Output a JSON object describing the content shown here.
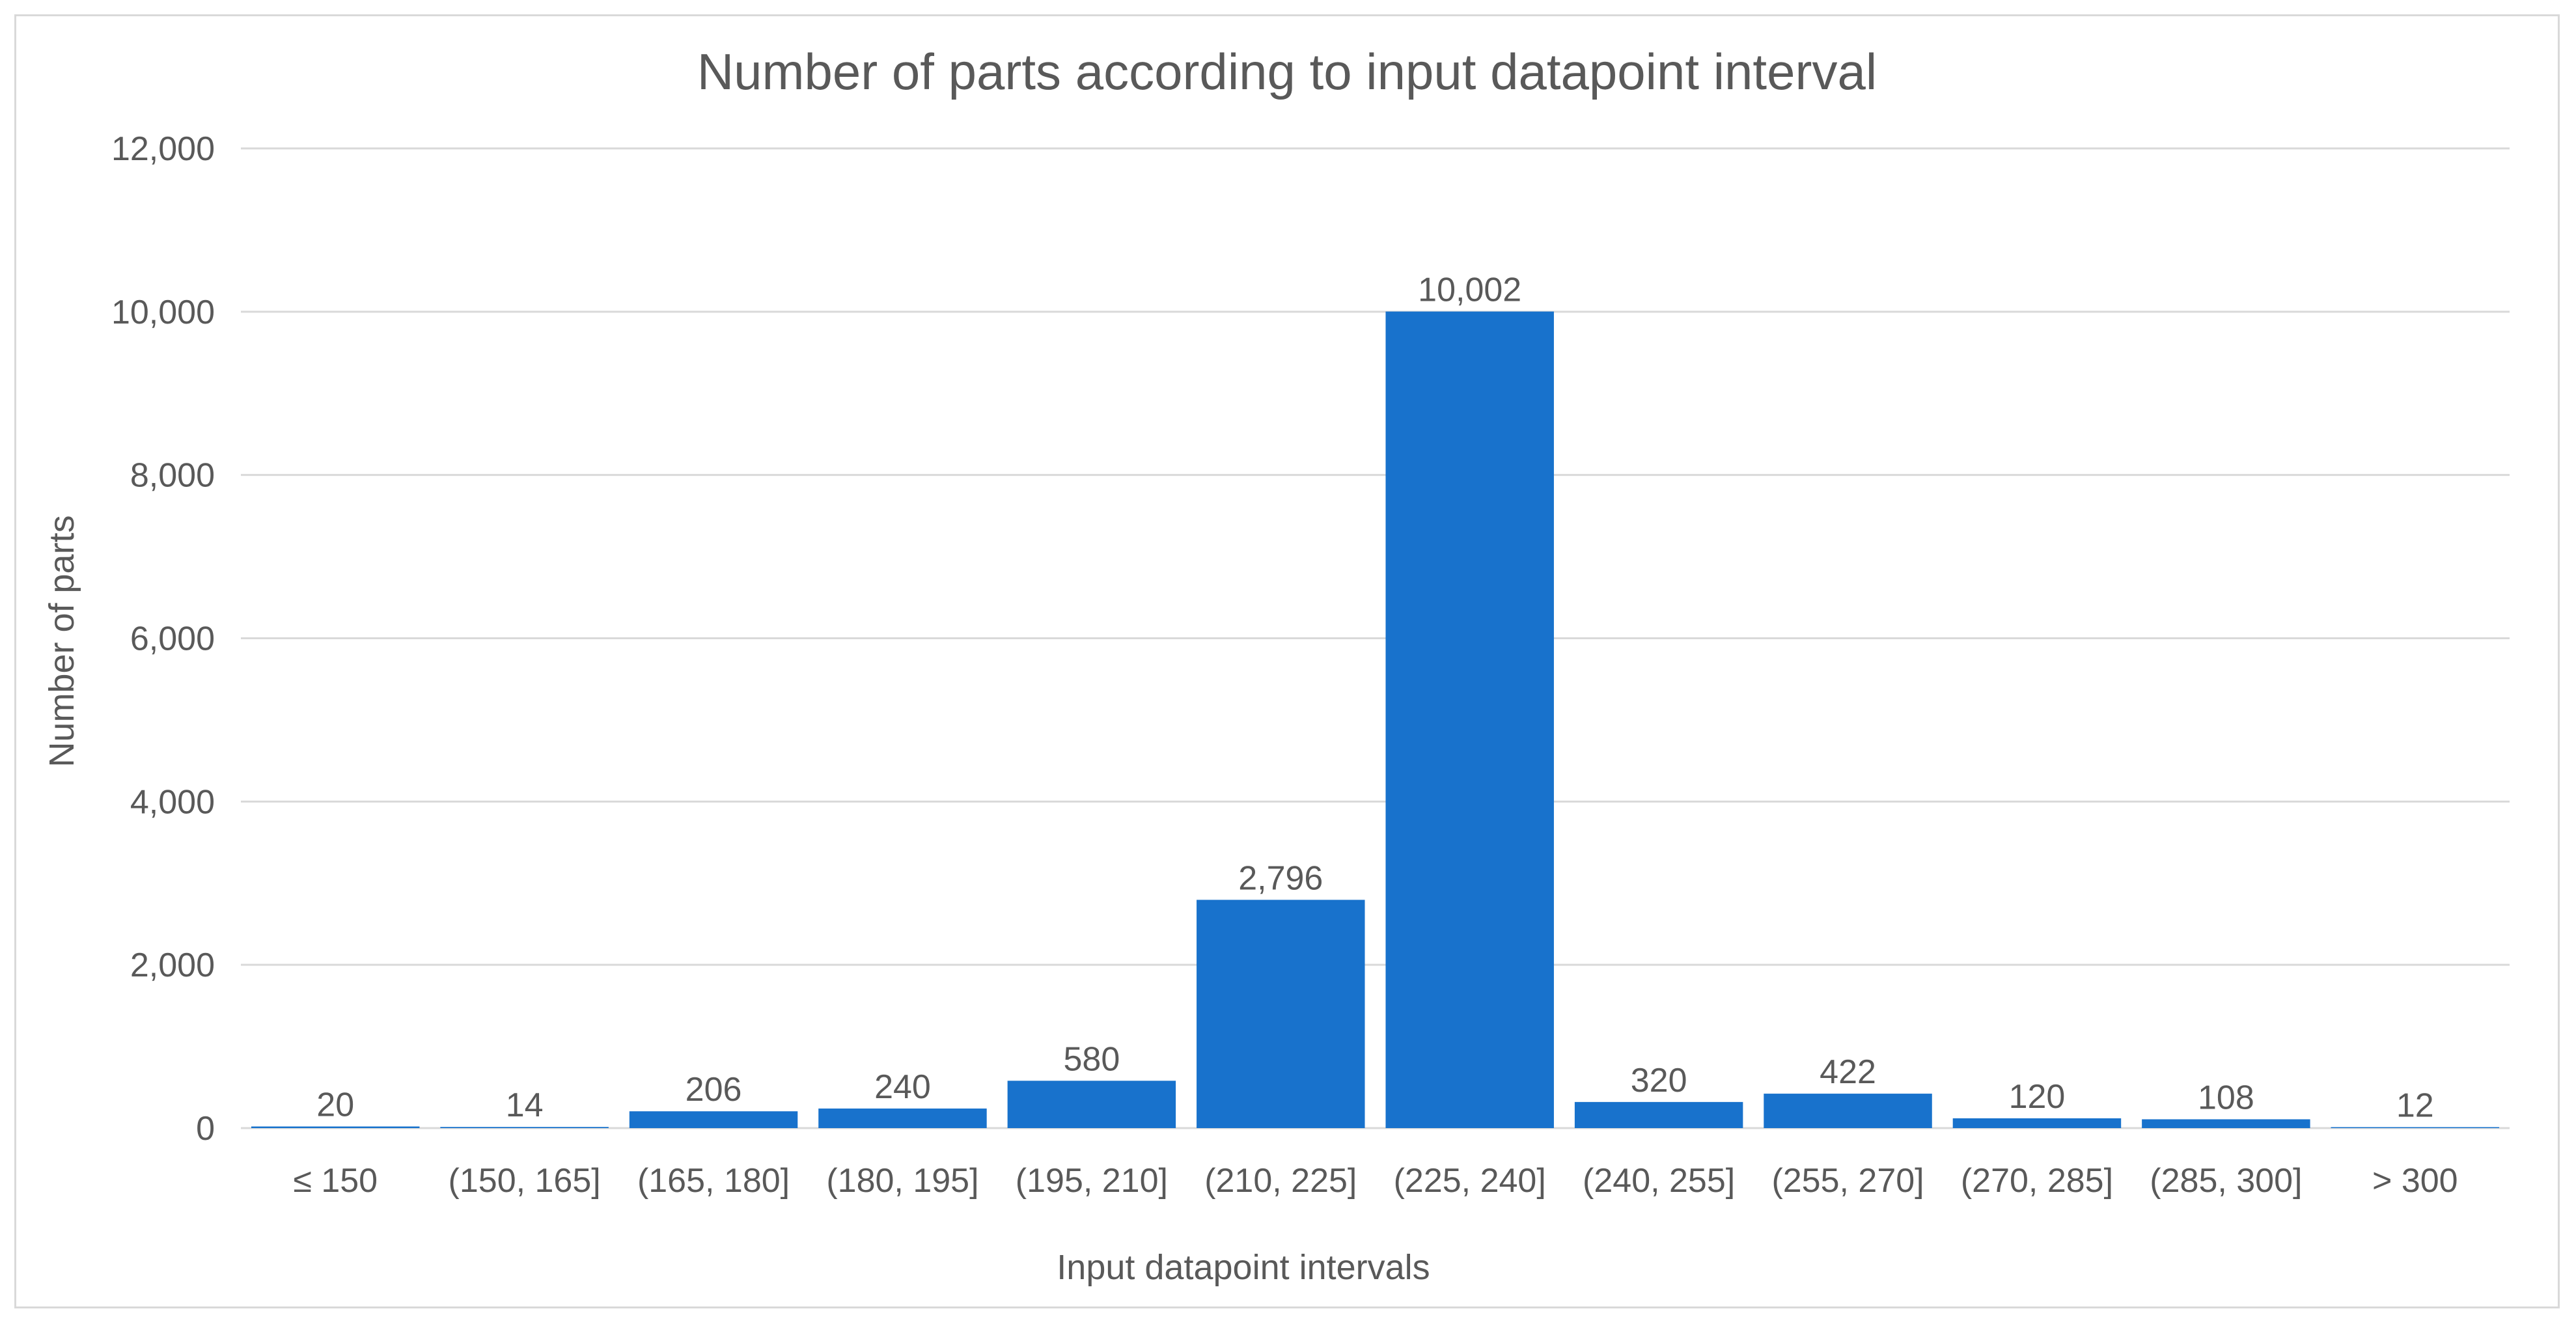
{
  "chart_data": {
    "type": "bar",
    "title": "Number of parts according to input datapoint interval",
    "xlabel": "Input datapoint intervals",
    "ylabel": "Number of parts",
    "categories": [
      "≤ 150",
      "(150, 165]",
      "(165, 180]",
      "(180, 195]",
      "(195, 210]",
      "(210, 225]",
      "(225, 240]",
      "(240, 255]",
      "(255, 270]",
      "(270, 285]",
      "(285, 300]",
      "> 300"
    ],
    "values": [
      20,
      14,
      206,
      240,
      580,
      2796,
      10002,
      320,
      422,
      120,
      108,
      12
    ],
    "data_labels": [
      "20",
      "14",
      "206",
      "240",
      "580",
      "2,796",
      "10,002",
      "320",
      "422",
      "120",
      "108",
      "12"
    ],
    "ylim": [
      0,
      12000
    ],
    "yticks": [
      0,
      2000,
      4000,
      6000,
      8000,
      10000,
      12000
    ],
    "ytick_labels": [
      "0",
      "2,000",
      "4,000",
      "6,000",
      "8,000",
      "10,000",
      "12,000"
    ],
    "grid": true,
    "legend": "none",
    "bar_color": "#1872CC",
    "grid_color": "#d9d9d9"
  }
}
